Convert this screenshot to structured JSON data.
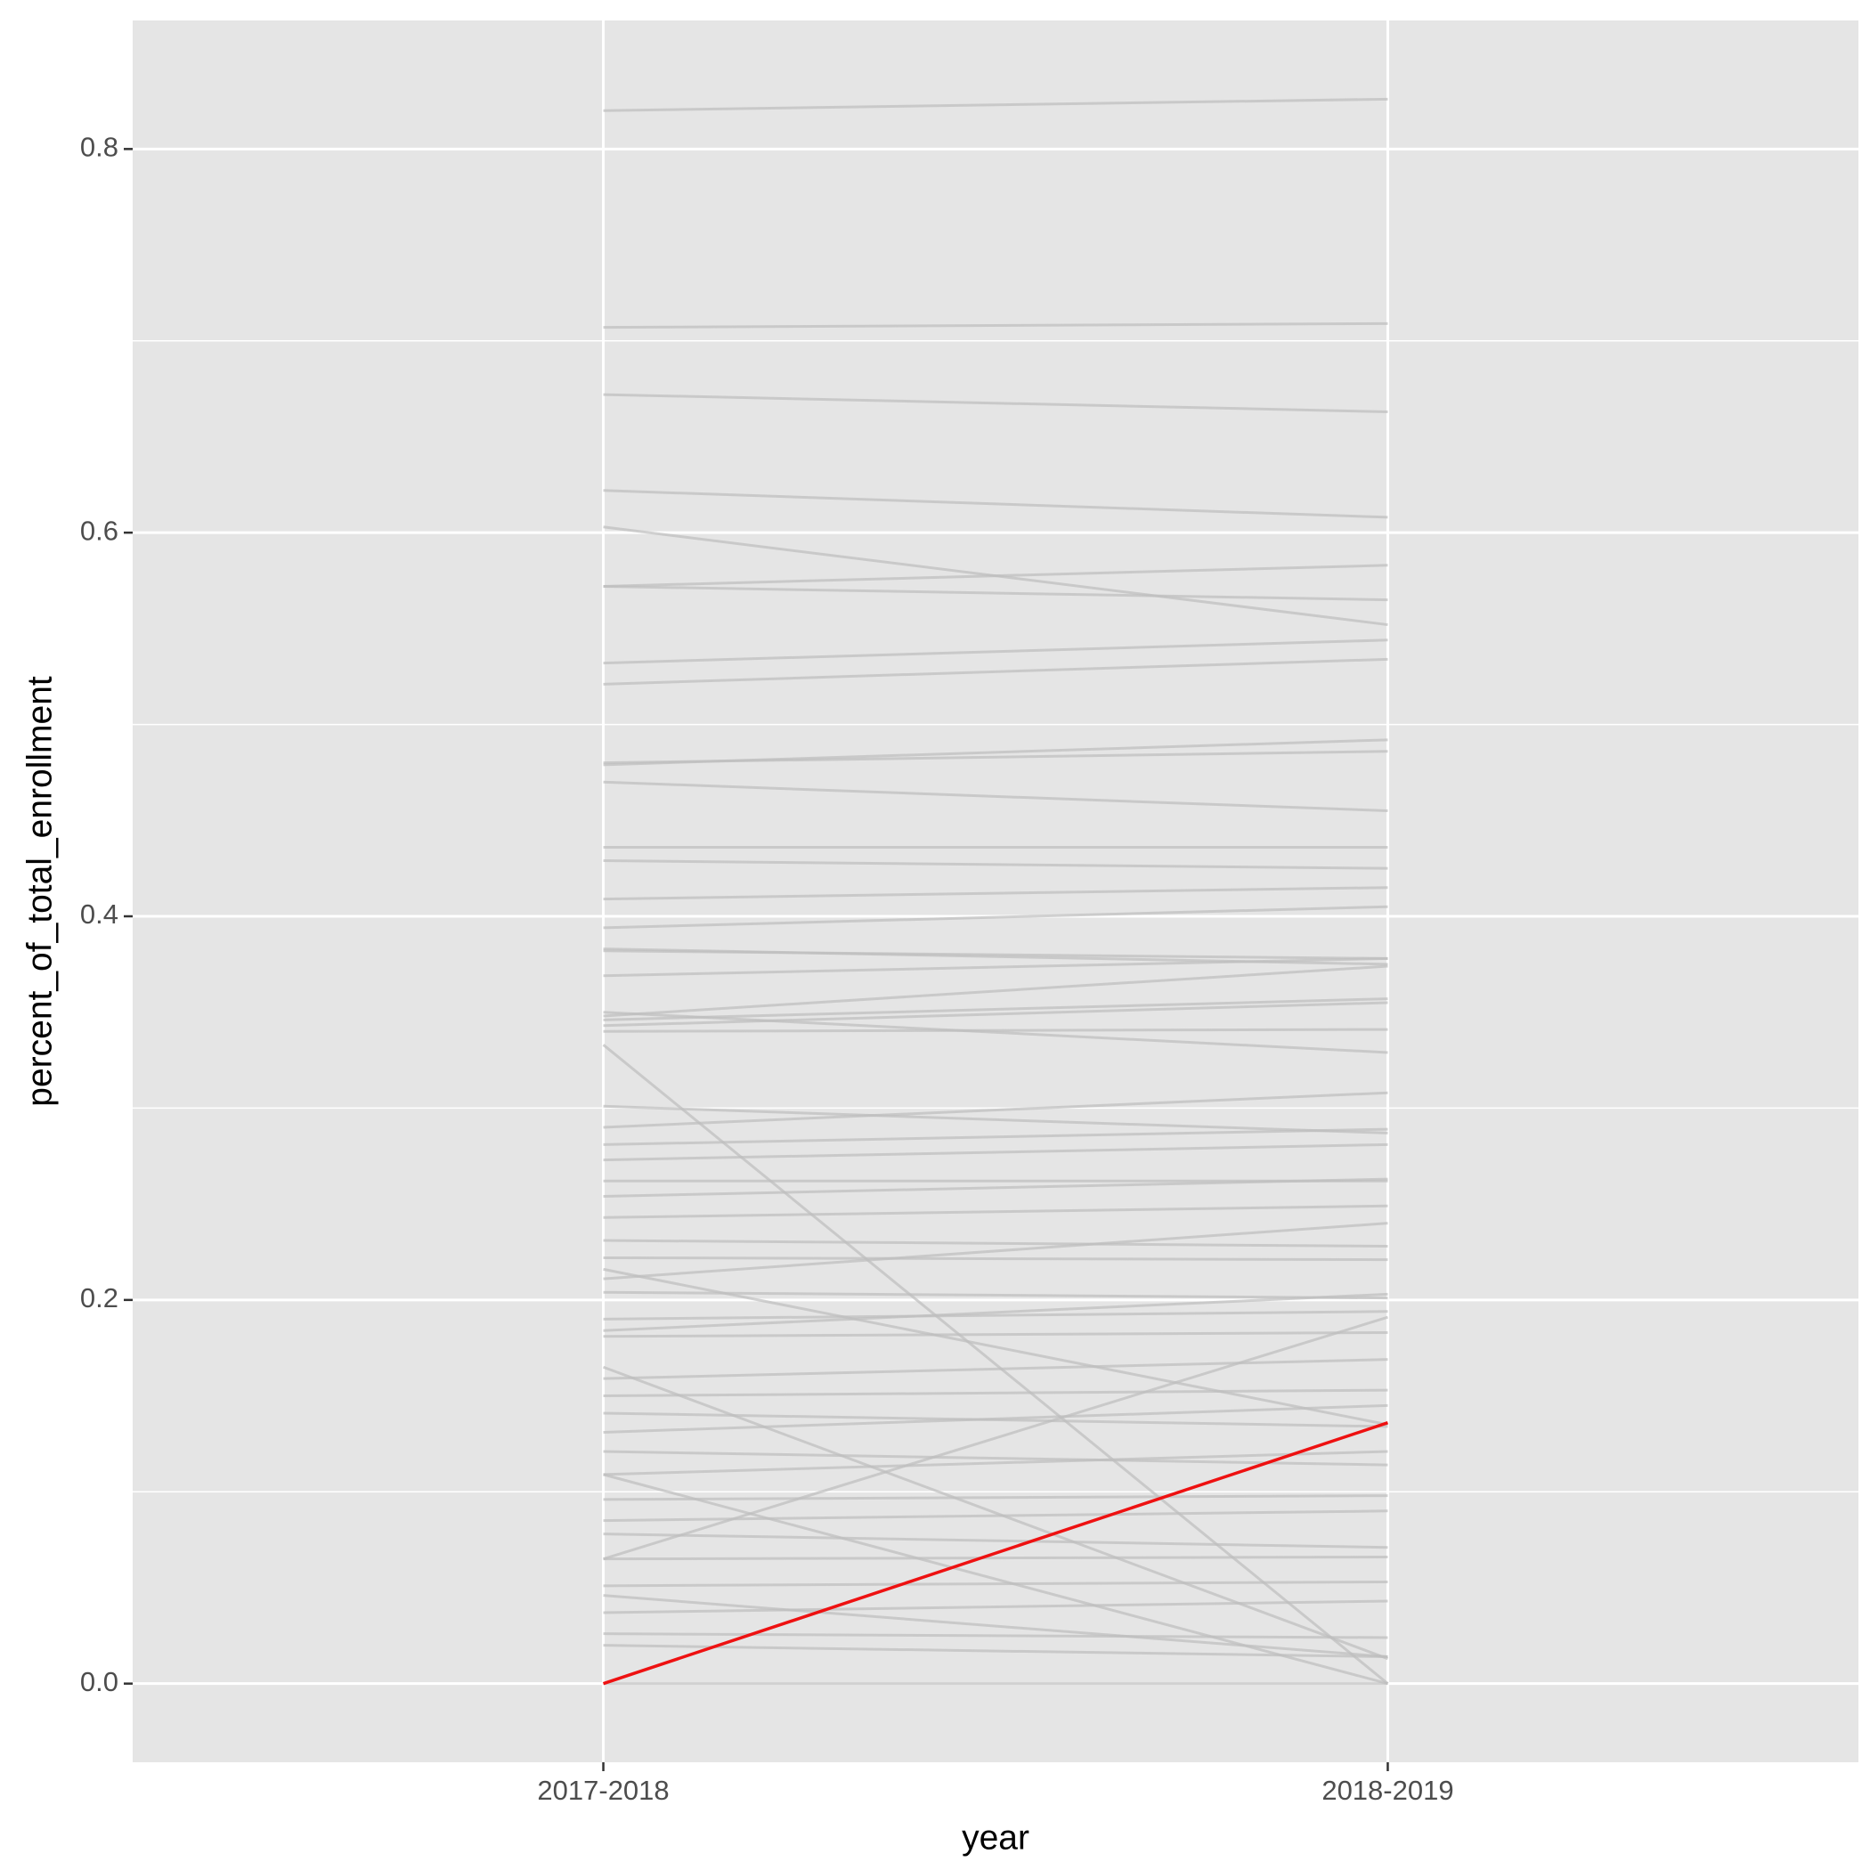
{
  "chart_data": {
    "type": "line",
    "x_label": "year",
    "y_label": "percent_of_total_enrollment",
    "categories": [
      "2017-2018",
      "2018-2019"
    ],
    "ylim": [
      -0.041,
      0.867
    ],
    "yticks": [
      {
        "value": 0,
        "label": "0.0"
      },
      0.2,
      0.4,
      0.6,
      0.8
    ],
    "minor_yticks": [
      0.1,
      0.3,
      0.5,
      0.7
    ],
    "grid": true,
    "color": "#bebebe",
    "series": [
      {
        "values": [
          0.82,
          0.826
        ]
      },
      {
        "values": [
          0.707,
          0.709
        ]
      },
      {
        "values": [
          0.672,
          0.663
        ]
      },
      {
        "values": [
          0.622,
          0.608
        ]
      },
      {
        "values": [
          0.603,
          0.552
        ]
      },
      {
        "values": [
          0.572,
          0.583
        ]
      },
      {
        "values": [
          0.572,
          0.565
        ]
      },
      {
        "values": [
          0.532,
          0.544
        ]
      },
      {
        "values": [
          0.521,
          0.534
        ]
      },
      {
        "values": [
          0.479,
          0.492
        ]
      },
      {
        "values": [
          0.48,
          0.486
        ]
      },
      {
        "values": [
          0.47,
          0.455
        ]
      },
      {
        "values": [
          0.436,
          0.436
        ]
      },
      {
        "values": [
          0.429,
          0.425
        ]
      },
      {
        "values": [
          0.409,
          0.415
        ]
      },
      {
        "values": [
          0.394,
          0.405
        ]
      },
      {
        "values": [
          0.383,
          0.375
        ]
      },
      {
        "values": [
          0.382,
          0.378
        ]
      },
      {
        "values": [
          0.369,
          0.378
        ]
      },
      {
        "values": [
          0.348,
          0.374
        ]
      },
      {
        "values": [
          0.346,
          0.357
        ]
      },
      {
        "values": [
          0.343,
          0.355
        ]
      },
      {
        "values": [
          0.34,
          0.341
        ]
      },
      {
        "values": [
          0.333,
          0
        ]
      },
      {
        "values": [
          0.35,
          0.329
        ]
      },
      {
        "values": [
          0.301,
          0.287
        ]
      },
      {
        "values": [
          0.29,
          0.308
        ]
      },
      {
        "values": [
          0.281,
          0.289
        ]
      },
      {
        "values": [
          0.273,
          0.281
        ]
      },
      {
        "values": [
          0.262,
          0.262
        ]
      },
      {
        "values": [
          0.254,
          0.263
        ]
      },
      {
        "values": [
          0.243,
          0.249
        ]
      },
      {
        "values": [
          0.231,
          0.228
        ]
      },
      {
        "values": [
          0.222,
          0.221
        ]
      },
      {
        "values": [
          0.216,
          0.135
        ]
      },
      {
        "values": [
          0.211,
          0.24
        ]
      },
      {
        "values": [
          0.204,
          0.201
        ]
      },
      {
        "values": [
          0.19,
          0.194
        ]
      },
      {
        "values": [
          0.184,
          0.203
        ]
      },
      {
        "values": [
          0.181,
          0.183
        ]
      },
      {
        "values": [
          0.165,
          0.013
        ]
      },
      {
        "values": [
          0.159,
          0.169
        ]
      },
      {
        "values": [
          0.15,
          0.153
        ]
      },
      {
        "values": [
          0.141,
          0.134
        ]
      },
      {
        "values": [
          0.131,
          0.145
        ]
      },
      {
        "values": [
          0.121,
          0.114
        ]
      },
      {
        "values": [
          0.109,
          0.121
        ]
      },
      {
        "values": [
          0.109,
          0
        ]
      },
      {
        "values": [
          0.096,
          0.098
        ]
      },
      {
        "values": [
          0.085,
          0.09
        ]
      },
      {
        "values": [
          0.078,
          0.071
        ]
      },
      {
        "values": [
          0.065,
          0.066
        ]
      },
      {
        "values": [
          0.065,
          0.191
        ]
      },
      {
        "values": [
          0.046,
          0.014
        ]
      },
      {
        "values": [
          0.051,
          0.053
        ]
      },
      {
        "values": [
          0.037,
          0.043
        ]
      },
      {
        "values": [
          0.026,
          0.024
        ]
      },
      {
        "values": [
          0.02,
          0.014
        ]
      },
      {
        "values": [
          0,
          0
        ]
      },
      {
        "values": [
          0,
          0.136
        ],
        "color": "#ee1111"
      }
    ]
  }
}
